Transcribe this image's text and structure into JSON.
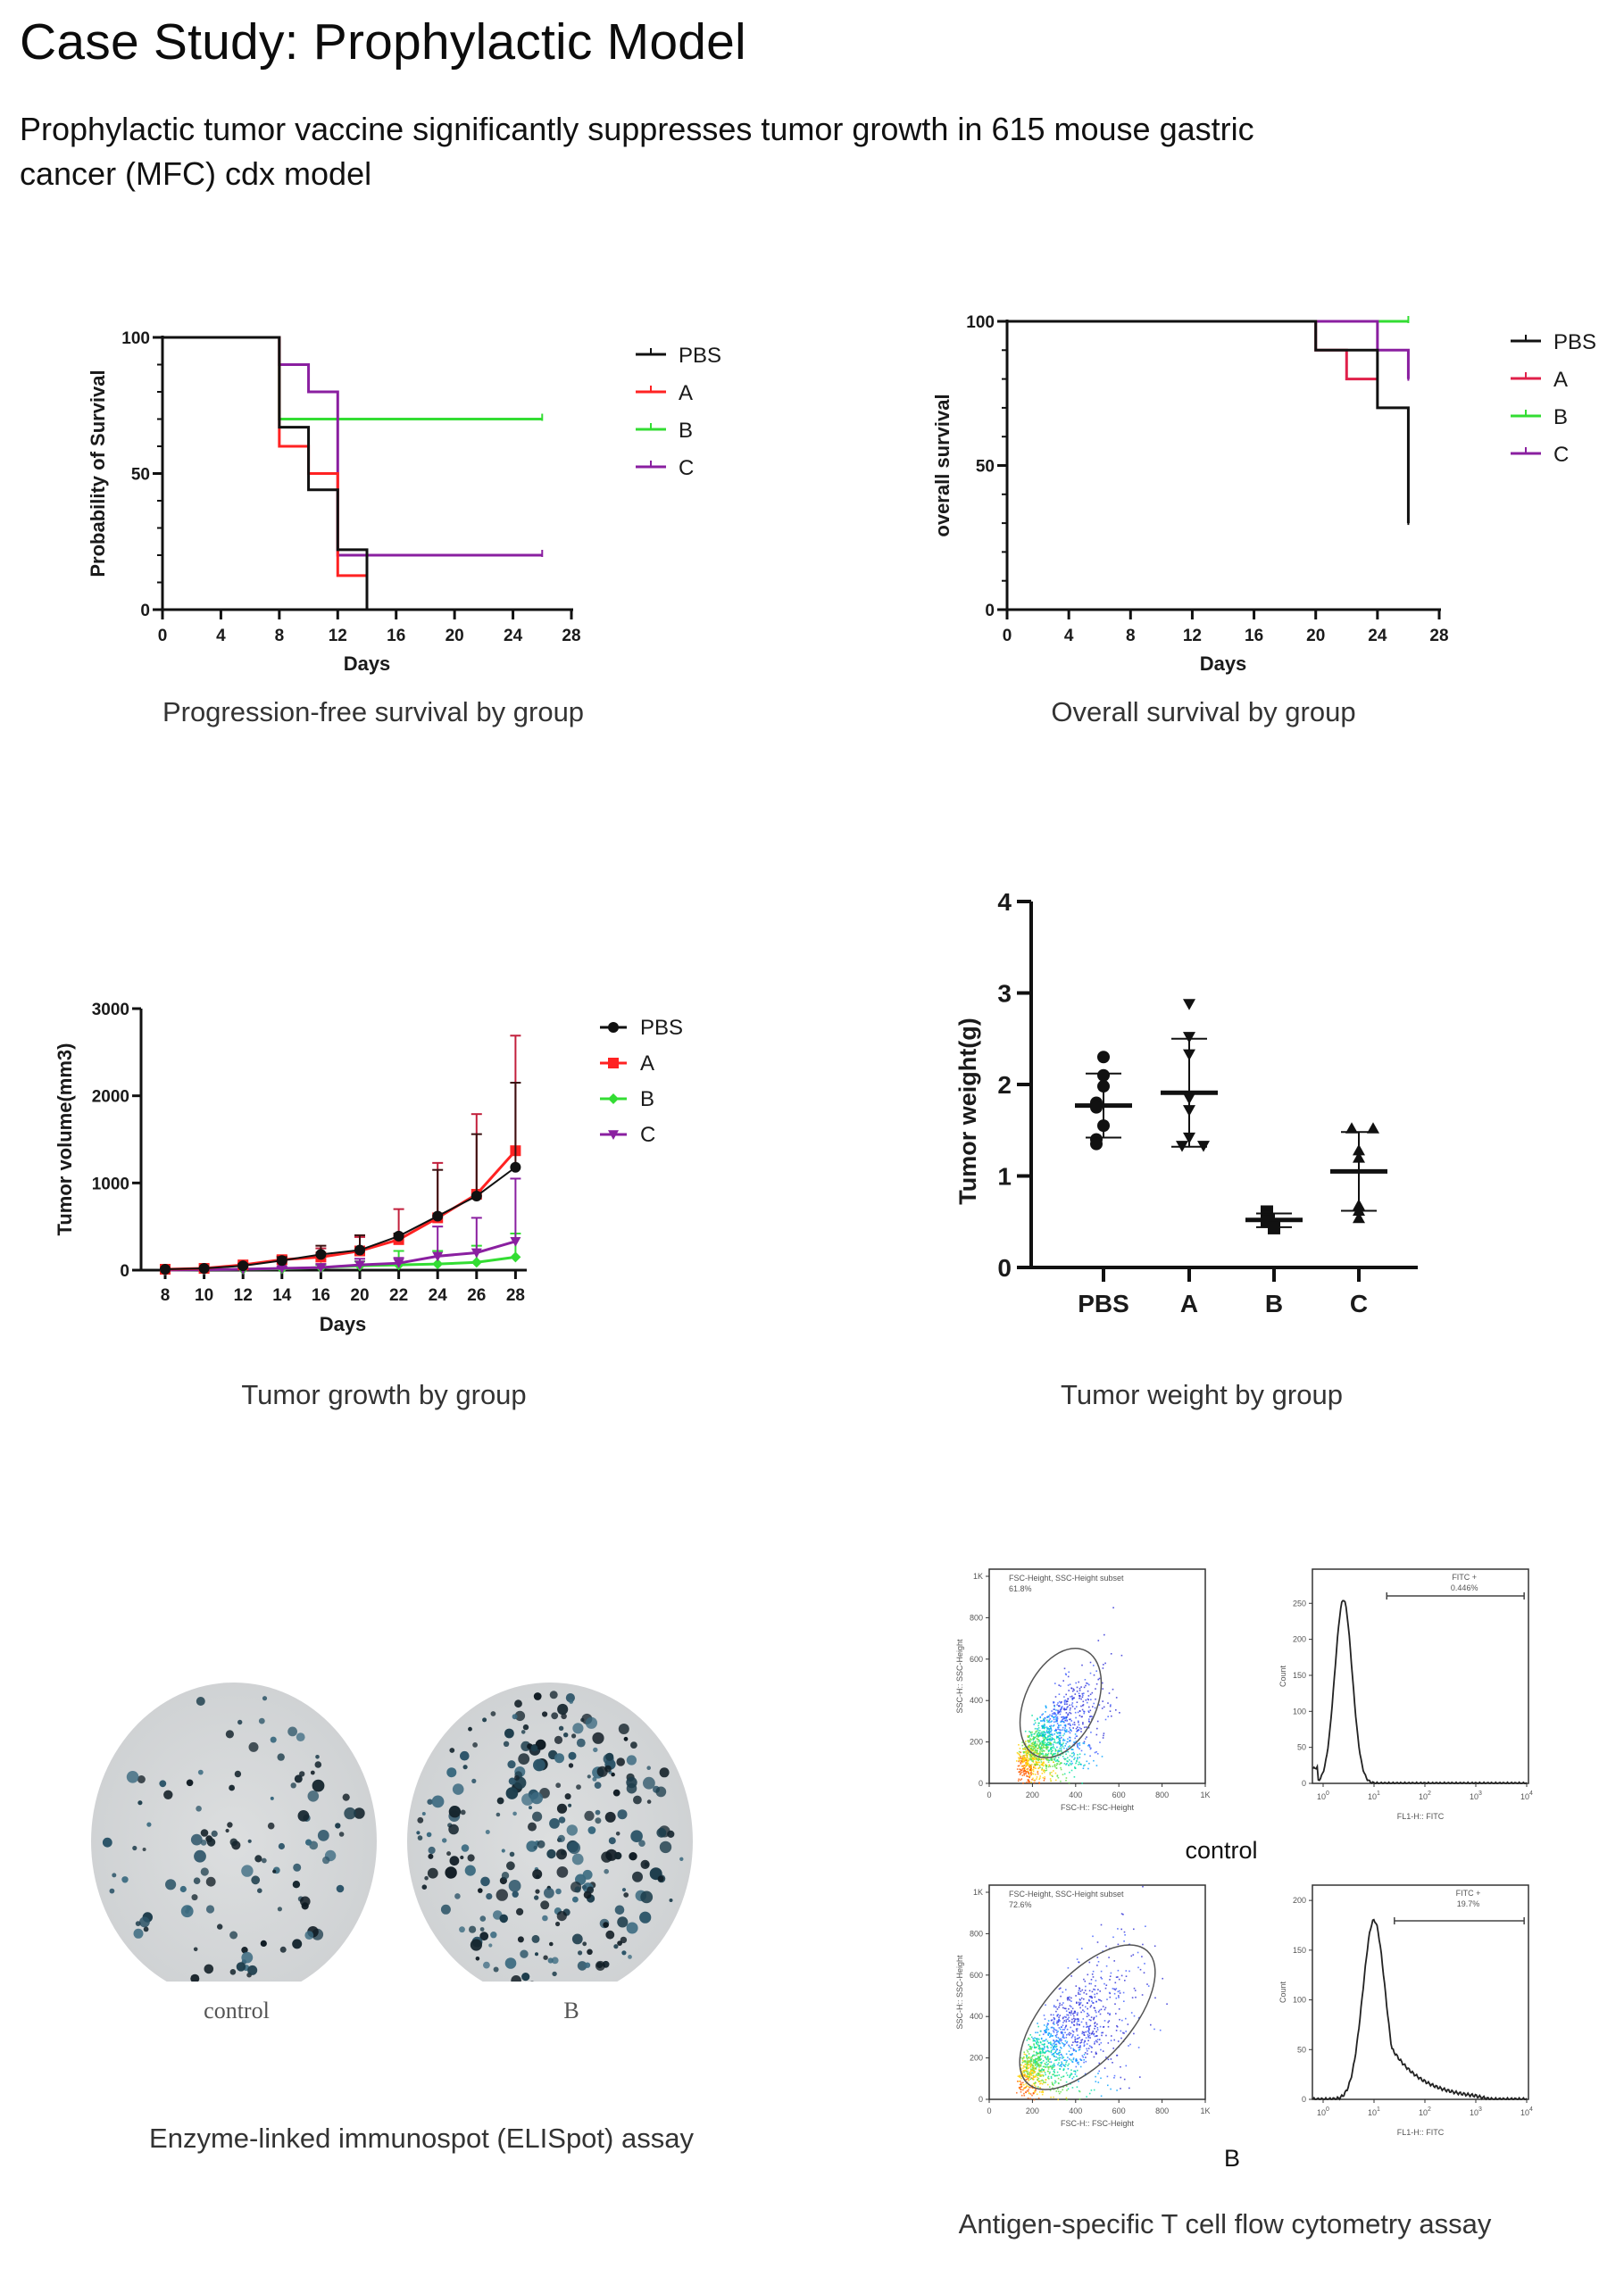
{
  "page": {
    "title": "Case Study: Prophylactic Model",
    "subtitle": "Prophylactic tumor vaccine significantly suppresses tumor growth in 615 mouse gastric cancer (MFC) cdx model"
  },
  "colors": {
    "PBS": "#111111",
    "A_pfs": "#ff2222",
    "A_os": "#e0204a",
    "B": "#33dd33",
    "C": "#8a1fa0"
  },
  "captions": {
    "pfs": "Progression-free survival by group",
    "os": "Overall survival by group",
    "growth": "Tumor growth by group",
    "weight": "Tumor weight by group",
    "elispot": "Enzyme-linked immunospot (ELISpot) assay",
    "flow": "Antigen-specific T cell flow cytometry assay"
  },
  "elispot": {
    "labels": [
      "control",
      "B"
    ]
  },
  "flow": {
    "group_labels": [
      "control",
      "B"
    ],
    "scatter": {
      "xlabel": "FSC-H:: FSC-Height",
      "ylabel": "SSC-H:: SSC-Height",
      "gate_name": "FSC-Height, SSC-Height subset",
      "x_ticks": [
        "0",
        "200",
        "400",
        "600",
        "800",
        "1K"
      ],
      "y_ticks": [
        "0",
        "200",
        "400",
        "600",
        "800",
        "1K"
      ],
      "gate_percent": [
        "61.8%",
        "72.6%"
      ]
    },
    "histogram": {
      "xlabel": "FL1-H:: FITC",
      "ylabel": "Count",
      "gate_name": "FITC +",
      "x_ticks": [
        "10^0",
        "10^1",
        "10^2",
        "10^3",
        "10^4"
      ],
      "y_ticks_control": [
        "0",
        "50",
        "100",
        "150",
        "200",
        "250"
      ],
      "y_ticks_B": [
        "0",
        "50",
        "100",
        "150",
        "200"
      ],
      "gate_percent": [
        "0.446%",
        "19.7%"
      ]
    }
  },
  "chart_data": [
    {
      "id": "pfs",
      "type": "line",
      "step": true,
      "title": "",
      "xlabel": "Days",
      "ylabel": "Probability of Survival",
      "xlim": [
        0,
        28
      ],
      "ylim": [
        0,
        100
      ],
      "x_ticks": [
        0,
        4,
        8,
        12,
        16,
        20,
        24,
        28
      ],
      "y_ticks": [
        0,
        50,
        100
      ],
      "legend": "right",
      "series": [
        {
          "name": "PBS",
          "points": [
            [
              0,
              100
            ],
            [
              8,
              67
            ],
            [
              10,
              44
            ],
            [
              12,
              22
            ],
            [
              14,
              0
            ]
          ],
          "end": 14
        },
        {
          "name": "A",
          "points": [
            [
              0,
              100
            ],
            [
              8,
              60
            ],
            [
              10,
              50
            ],
            [
              12,
              12.5
            ],
            [
              14,
              0
            ]
          ],
          "end": 14
        },
        {
          "name": "B",
          "points": [
            [
              0,
              100
            ],
            [
              8,
              70
            ]
          ],
          "end": 26
        },
        {
          "name": "C",
          "points": [
            [
              0,
              100
            ],
            [
              8,
              90
            ],
            [
              10,
              80
            ],
            [
              12,
              20
            ]
          ],
          "end": 26
        }
      ]
    },
    {
      "id": "os",
      "type": "line",
      "step": true,
      "title": "",
      "xlabel": "Days",
      "ylabel": "overall survival",
      "xlim": [
        0,
        28
      ],
      "ylim": [
        0,
        100
      ],
      "x_ticks": [
        0,
        4,
        8,
        12,
        16,
        20,
        24,
        28
      ],
      "y_ticks": [
        0,
        50,
        100
      ],
      "legend": "right",
      "series": [
        {
          "name": "PBS",
          "points": [
            [
              0,
              100
            ],
            [
              20,
              90
            ],
            [
              24,
              70
            ],
            [
              26,
              30
            ]
          ],
          "end": 26
        },
        {
          "name": "A",
          "points": [
            [
              0,
              100
            ],
            [
              20,
              90
            ],
            [
              22,
              80
            ]
          ],
          "end": 24
        },
        {
          "name": "B",
          "points": [
            [
              0,
              100
            ]
          ],
          "end": 26
        },
        {
          "name": "C",
          "points": [
            [
              0,
              100
            ],
            [
              24,
              90
            ],
            [
              26,
              80
            ]
          ],
          "end": 26
        }
      ]
    },
    {
      "id": "growth",
      "type": "line",
      "title": "",
      "xlabel": "Days",
      "ylabel": "Tumor volume(mm3)",
      "categories": [
        "8",
        "10",
        "12",
        "14",
        "16",
        "20",
        "22",
        "24",
        "26",
        "28"
      ],
      "ylim": [
        0,
        3000
      ],
      "y_ticks": [
        0,
        1000,
        2000,
        3000
      ],
      "legend": "top-right",
      "series": [
        {
          "name": "PBS",
          "marker": "circle",
          "values": [
            10,
            20,
            50,
            110,
            180,
            230,
            390,
            620,
            850,
            1180
          ],
          "err_upper": [
            15,
            25,
            70,
            150,
            280,
            400,
            420,
            1150,
            1560,
            2150
          ]
        },
        {
          "name": "A",
          "marker": "square",
          "values": [
            10,
            20,
            60,
            120,
            150,
            220,
            350,
            600,
            870,
            1370
          ],
          "err_upper": [
            20,
            30,
            80,
            160,
            250,
            380,
            700,
            1230,
            1790,
            2690
          ]
        },
        {
          "name": "B",
          "marker": "diamond",
          "values": [
            0,
            5,
            10,
            15,
            30,
            50,
            60,
            70,
            90,
            150
          ],
          "err_upper": [
            5,
            10,
            20,
            30,
            60,
            100,
            220,
            220,
            280,
            420
          ]
        },
        {
          "name": "C",
          "marker": "triangle-down",
          "values": [
            0,
            5,
            10,
            20,
            30,
            60,
            80,
            160,
            200,
            330
          ],
          "err_upper": [
            5,
            10,
            20,
            40,
            70,
            130,
            140,
            500,
            600,
            1050
          ]
        }
      ]
    },
    {
      "id": "weight",
      "type": "scatter",
      "title": "",
      "xlabel": "",
      "ylabel": "Tumor weight(g)",
      "categories": [
        "PBS",
        "A",
        "B",
        "C"
      ],
      "ylim": [
        0,
        4
      ],
      "y_ticks": [
        0,
        1,
        2,
        3,
        4
      ],
      "series": [
        {
          "name": "PBS",
          "marker": "circle",
          "points": [
            2.3,
            2.1,
            1.98,
            1.8,
            1.75,
            1.55,
            1.4,
            1.35
          ],
          "mean": 1.77,
          "sd_low": 1.42,
          "sd_high": 2.12
        },
        {
          "name": "A",
          "marker": "triangle-down",
          "points": [
            2.88,
            2.52,
            2.33,
            1.85,
            1.72,
            1.42,
            1.33,
            1.33
          ],
          "mean": 1.91,
          "sd_low": 1.32,
          "sd_high": 2.5
        },
        {
          "name": "B",
          "marker": "square",
          "points": [
            0.61,
            0.55,
            0.52,
            0.5,
            0.43
          ],
          "mean": 0.52,
          "sd_low": 0.44,
          "sd_high": 0.59
        },
        {
          "name": "C",
          "marker": "triangle-up",
          "points": [
            1.52,
            1.52,
            1.28,
            1.2,
            0.68,
            0.62,
            0.54
          ],
          "mean": 1.05,
          "sd_low": 0.62,
          "sd_high": 1.48
        }
      ]
    }
  ]
}
